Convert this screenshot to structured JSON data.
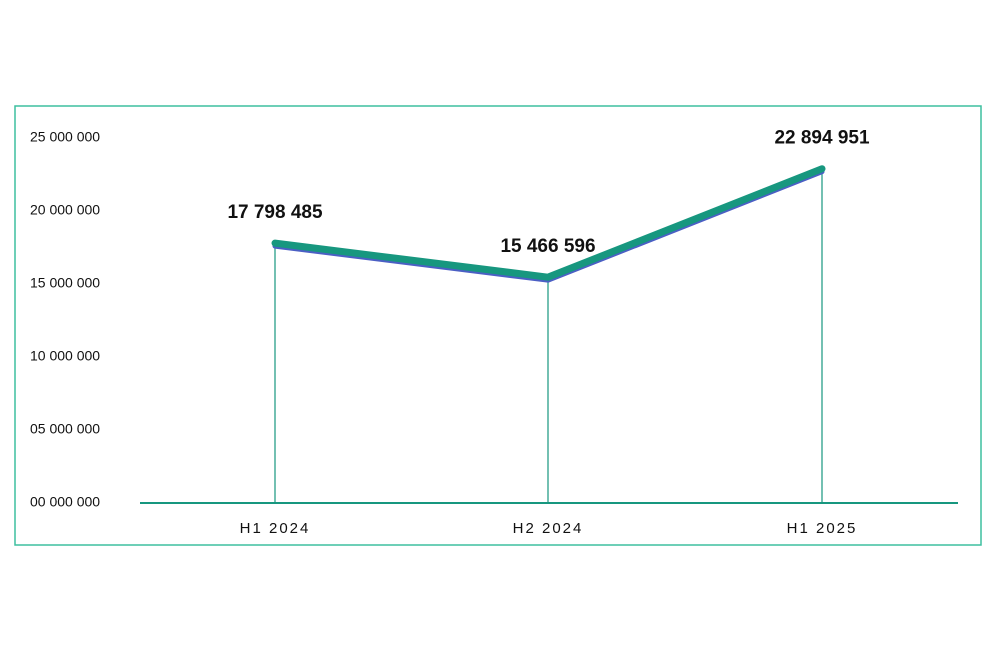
{
  "chart_data": {
    "type": "line",
    "categories": [
      "H1 2024",
      "H2 2024",
      "H1 2025"
    ],
    "values": [
      17798485,
      15466596,
      22894951
    ],
    "value_labels": [
      "17 798 485",
      "15 466 596",
      "22 894 951"
    ],
    "color": "#17977f",
    "shadow_color": "#4b5fc4",
    "ylim": [
      0,
      25000000
    ],
    "yticks": [
      {
        "value": 0,
        "label": "00 000 000"
      },
      {
        "value": 5000000,
        "label": "05 000 000"
      },
      {
        "value": 10000000,
        "label": "10 000 000"
      },
      {
        "value": 15000000,
        "label": "15 000 000"
      },
      {
        "value": 20000000,
        "label": "20 000 000"
      },
      {
        "value": 25000000,
        "label": "25 000 000"
      }
    ],
    "drop_lines": true
  }
}
